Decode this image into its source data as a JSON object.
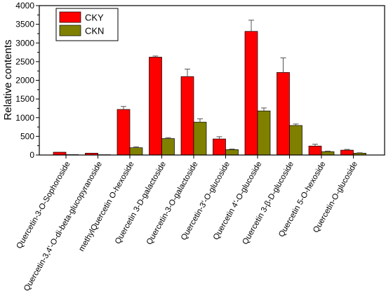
{
  "chart_data": {
    "type": "bar",
    "ylabel": "Relative contents",
    "xlabel": "",
    "ylim": [
      0,
      4000
    ],
    "yticks": [
      0,
      500,
      1000,
      1500,
      2000,
      2500,
      3000,
      3500,
      4000
    ],
    "legend_position": "top-left",
    "grid": false,
    "categories": [
      "Quercetin-3-O-Sophoroside",
      "Quercetin-3,4'-O-di-beta-glucopyranoside",
      "methylQuercetin O-hexoside",
      "Quercetin 3-D-galactoside",
      "Quercetin-3-O-galactoside",
      "Quercetin-3'-O-glucoside",
      "Quercetin 4'-O-glucoside",
      "Quercetin 3-β-D-glucoside",
      "Quercetin 5-O-hexoside",
      "Quercetin-O-glucoside"
    ],
    "series": [
      {
        "name": "CKY",
        "color": "#ff0000",
        "values": [
          75,
          50,
          1220,
          2620,
          2100,
          430,
          3310,
          2210,
          240,
          130
        ],
        "errors": [
          0,
          0,
          80,
          30,
          200,
          60,
          300,
          390,
          50,
          20
        ]
      },
      {
        "name": "CKN",
        "color": "#808000",
        "values": [
          10,
          8,
          195,
          440,
          880,
          145,
          1180,
          790,
          90,
          50
        ],
        "errors": [
          0,
          0,
          25,
          25,
          90,
          15,
          80,
          40,
          15,
          10
        ]
      }
    ]
  }
}
